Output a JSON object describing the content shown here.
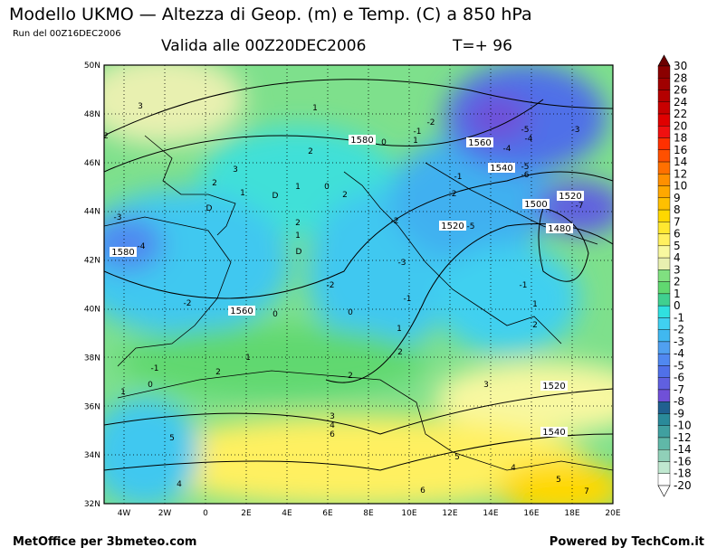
{
  "header": {
    "title": "Modello UKMO — Altezza di Geop. (m) e Temp. (C) a 850 hPa",
    "run": "Run del 00Z16DEC2006",
    "valid": "Valida alle 00Z20DEC2006",
    "step": "T=+ 96"
  },
  "map": {
    "lat_labels": [
      "50N",
      "48N",
      "46N",
      "44N",
      "42N",
      "40N",
      "38N",
      "36N",
      "34N",
      "32N"
    ],
    "lon_labels": [
      "4W",
      "2W",
      "0",
      "2E",
      "4E",
      "6E",
      "8E",
      "10E",
      "12E",
      "14E",
      "16E",
      "18E",
      "20E"
    ],
    "height_labels": [
      1580,
      1560,
      1540,
      1520,
      1500,
      1480,
      1520,
      1580,
      1560,
      1520,
      1540
    ],
    "temp_labels": [
      3,
      1,
      2,
      -1,
      -2,
      -4,
      -3,
      2,
      -4,
      3,
      2,
      1,
      0,
      1,
      0,
      2,
      -5,
      -6,
      -1,
      -2,
      -3,
      -4,
      -2,
      -5,
      -7,
      2,
      1,
      -3,
      -2,
      -1,
      -1,
      0,
      -2,
      1,
      2,
      1,
      1,
      2,
      -1,
      2,
      0,
      1,
      2,
      3,
      3,
      4,
      5,
      5,
      4,
      5,
      6,
      4,
      6,
      7,
      0,
      1,
      -5
    ],
    "low_labels": [
      "D",
      "D",
      "D"
    ]
  },
  "colorbar": {
    "levels": [
      30,
      28,
      26,
      24,
      22,
      20,
      18,
      16,
      14,
      12,
      10,
      9,
      8,
      7,
      6,
      5,
      4,
      3,
      2,
      1,
      0,
      -1,
      -2,
      -3,
      -4,
      -5,
      -6,
      -7,
      -8,
      -9,
      -10,
      -12,
      -14,
      -16,
      -18,
      -20
    ],
    "colors": [
      "#6b0000",
      "#8b0000",
      "#a00000",
      "#b40000",
      "#c80000",
      "#e00000",
      "#f01010",
      "#ff3000",
      "#ff5000",
      "#ff7000",
      "#ff9000",
      "#ffa800",
      "#ffc000",
      "#ffd800",
      "#ffe830",
      "#fff060",
      "#f8f8a0",
      "#e8f0b0",
      "#80e080",
      "#60d870",
      "#40d090",
      "#30e0e0",
      "#40d0f0",
      "#40b8f0",
      "#50a0f0",
      "#5088f0",
      "#5070e8",
      "#6060e0",
      "#7050d8",
      "#206090",
      "#2a8a9a",
      "#40a0a0",
      "#60b8a8",
      "#90d0b8",
      "#c0e8d0",
      "#ffffff"
    ]
  },
  "footer": {
    "left": "MetOffice per 3bmeteo.com",
    "right": "Powered by TechCom.it"
  }
}
